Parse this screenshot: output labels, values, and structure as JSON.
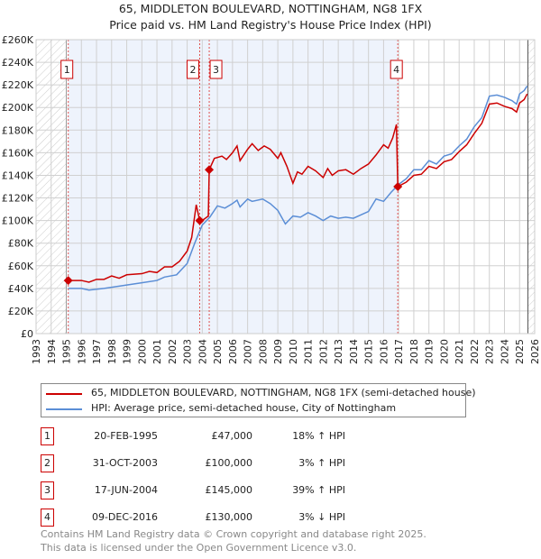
{
  "chart_data": {
    "type": "line",
    "title": "65, MIDDLETON BOULEVARD, NOTTINGHAM, NG8 1FX",
    "subtitle": "Price paid vs. HM Land Registry's House Price Index (HPI)",
    "xlim": [
      1993,
      2026
    ],
    "ylim": [
      0,
      260000
    ],
    "y_ticks": [
      0,
      20000,
      40000,
      60000,
      80000,
      100000,
      120000,
      140000,
      160000,
      180000,
      200000,
      220000,
      240000,
      260000
    ],
    "y_tick_labels": [
      "£0",
      "£20K",
      "£40K",
      "£60K",
      "£80K",
      "£100K",
      "£120K",
      "£140K",
      "£160K",
      "£180K",
      "£200K",
      "£220K",
      "£240K",
      "£260K"
    ],
    "x_tick_labels": [
      "1993",
      "1994",
      "1995",
      "1996",
      "1997",
      "1998",
      "1999",
      "2000",
      "2001",
      "2002",
      "2003",
      "2004",
      "2005",
      "2006",
      "2007",
      "2008",
      "2009",
      "2010",
      "2011",
      "2012",
      "2013",
      "2014",
      "2015",
      "2016",
      "2017",
      "2018",
      "2019",
      "2020",
      "2021",
      "2022",
      "2023",
      "2024",
      "2025",
      "2026"
    ],
    "grid": true,
    "legend_placement": "below",
    "series": [
      {
        "name": "65, MIDDLETON BOULEVARD, NOTTINGHAM, NG8 1FX (semi-detached house)",
        "color": "#cc0000",
        "x": [
          1995.13,
          1996,
          1996.5,
          1997,
          1997.5,
          1998,
          1998.5,
          1999,
          2000,
          2000.5,
          2001,
          2001.5,
          2002,
          2002.5,
          2003,
          2003.3,
          2003.6,
          2003.83,
          2004.1,
          2004.4,
          2004.46,
          2004.8,
          2005.3,
          2005.6,
          2006,
          2006.3,
          2006.5,
          2007,
          2007.3,
          2007.7,
          2008.1,
          2008.5,
          2009,
          2009.2,
          2009.6,
          2010,
          2010.3,
          2010.6,
          2011,
          2011.5,
          2012,
          2012.3,
          2012.6,
          2013,
          2013.5,
          2014,
          2014.5,
          2015,
          2015.5,
          2016,
          2016.3,
          2016.6,
          2016.85,
          2016.94,
          2017.5,
          2018,
          2018.5,
          2019,
          2019.5,
          2020,
          2020.5,
          2021,
          2021.5,
          2022,
          2022.5,
          2023,
          2023.5,
          2024,
          2024.5,
          2024.8,
          2025,
          2025.3,
          2025.5
        ],
        "y": [
          47000,
          47000,
          45500,
          48000,
          48000,
          51000,
          49000,
          52000,
          53000,
          55000,
          54000,
          59000,
          59000,
          64000,
          73000,
          85000,
          114000,
          100000,
          101000,
          104000,
          145000,
          155000,
          157000,
          154000,
          160000,
          166000,
          153000,
          163000,
          168000,
          162000,
          166000,
          163000,
          155000,
          160000,
          148000,
          133000,
          143000,
          141000,
          148000,
          144000,
          138000,
          146000,
          140000,
          144000,
          145000,
          141000,
          146000,
          150000,
          158000,
          167000,
          164000,
          173000,
          185000,
          130000,
          134000,
          140000,
          141000,
          148000,
          146000,
          152000,
          154000,
          161000,
          167000,
          177000,
          186000,
          203000,
          204000,
          201000,
          199000,
          196000,
          204000,
          207000,
          212000
        ]
      },
      {
        "name": "HPI: Average price, semi-detached house, City of Nottingham",
        "color": "#5b8ed6",
        "x": [
          1995.13,
          1996,
          1996.5,
          1997.5,
          1998.5,
          2000,
          2001,
          2001.5,
          2002.3,
          2003,
          2003.5,
          2004,
          2004.5,
          2005,
          2005.5,
          2006,
          2006.3,
          2006.5,
          2007,
          2007.3,
          2008,
          2008.5,
          2009,
          2009.5,
          2010,
          2010.5,
          2011,
          2011.5,
          2012,
          2012.5,
          2013,
          2013.5,
          2014,
          2015,
          2015.5,
          2016,
          2016.5,
          2017,
          2017.5,
          2018,
          2018.5,
          2019,
          2019.5,
          2020,
          2020.5,
          2021,
          2021.5,
          2022,
          2022.5,
          2023,
          2023.5,
          2024,
          2024.5,
          2024.8,
          2025,
          2025.3,
          2025.5
        ],
        "y": [
          40000,
          40000,
          38500,
          40000,
          42000,
          45000,
          47000,
          50000,
          52000,
          62000,
          80000,
          96000,
          103000,
          113000,
          111000,
          115000,
          118000,
          112000,
          119000,
          117000,
          119000,
          115000,
          109000,
          97000,
          104000,
          103000,
          107000,
          104000,
          100000,
          104000,
          102000,
          103000,
          102000,
          108000,
          119000,
          117000,
          125000,
          132000,
          137000,
          145000,
          145000,
          153000,
          150000,
          157000,
          159000,
          166000,
          172000,
          183000,
          191000,
          210000,
          211000,
          209000,
          206000,
          203000,
          212000,
          215000,
          219000
        ]
      }
    ],
    "sales": [
      {
        "label": "1",
        "x": 1995.13,
        "price": 47000
      },
      {
        "label": "2",
        "x": 2003.83,
        "price": 100000
      },
      {
        "label": "3",
        "x": 2004.46,
        "price": 145000
      },
      {
        "label": "4",
        "x": 2016.94,
        "price": 130000
      }
    ],
    "hatch_before": 1995,
    "hatch_after": 2025.55,
    "shaded_range": [
      1995.13,
      2016.94
    ]
  },
  "legend": {
    "red": "65, MIDDLETON BOULEVARD, NOTTINGHAM, NG8 1FX (semi-detached house)",
    "blue": "HPI: Average price, semi-detached house, City of Nottingham"
  },
  "table": [
    {
      "n": "1",
      "date": "20-FEB-1995",
      "price": "£47,000",
      "hpi": "18% ↑ HPI"
    },
    {
      "n": "2",
      "date": "31-OCT-2003",
      "price": "£100,000",
      "hpi": "3% ↑ HPI"
    },
    {
      "n": "3",
      "date": "17-JUN-2004",
      "price": "£145,000",
      "hpi": "39% ↑ HPI"
    },
    {
      "n": "4",
      "date": "09-DEC-2016",
      "price": "£130,000",
      "hpi": "3% ↓ HPI"
    }
  ],
  "footer": [
    "Contains HM Land Registry data © Crown copyright and database right 2025.",
    "This data is licensed under the Open Government Licence v3.0."
  ]
}
